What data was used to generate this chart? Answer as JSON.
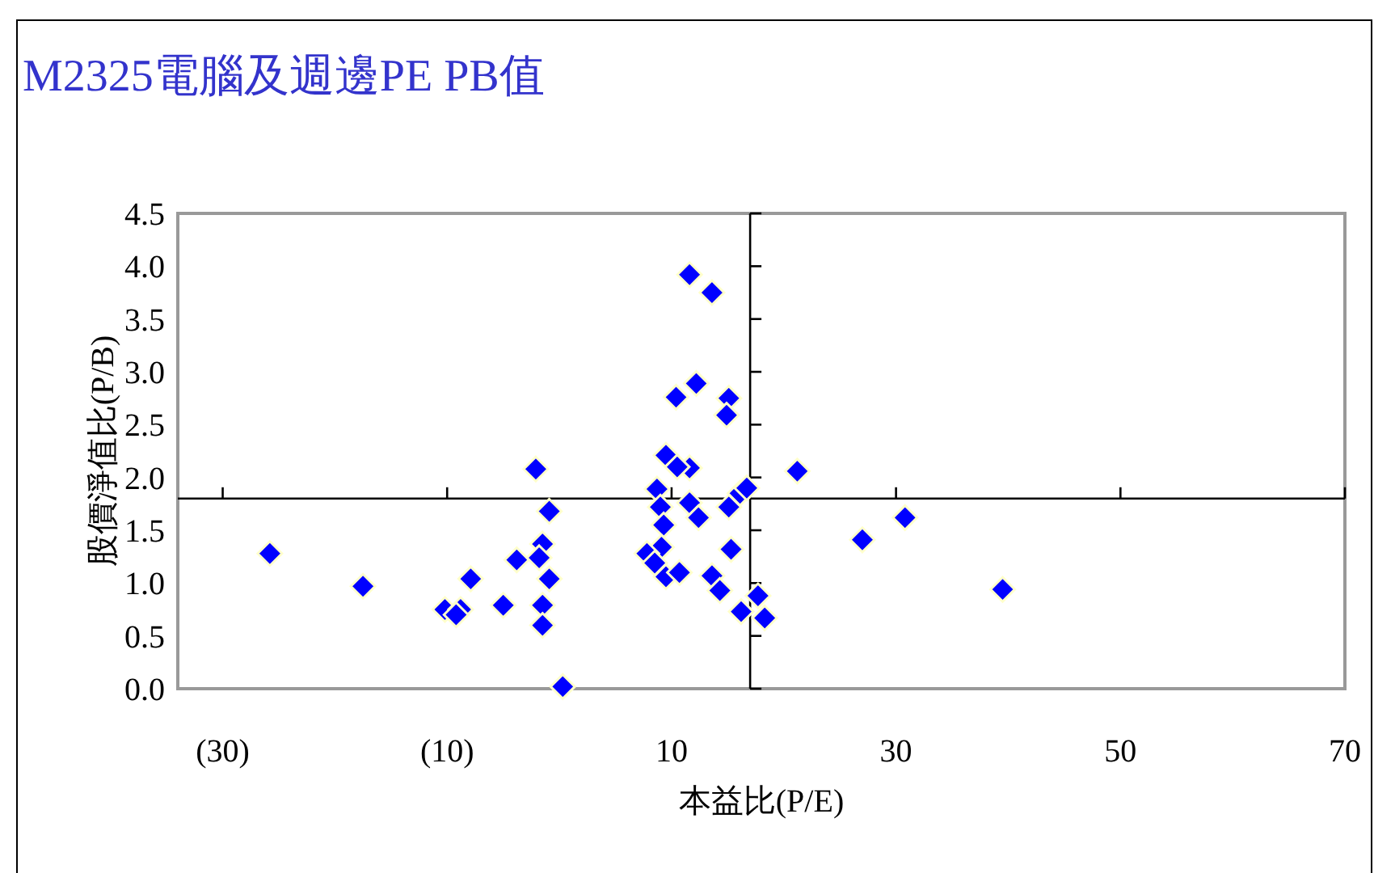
{
  "chart_data": {
    "type": "scatter",
    "title": "M2325電腦及週邊PE PB值",
    "xlabel": "本益比(P/E)",
    "ylabel": "股價淨值比(P/B)",
    "xlim": [
      -34,
      70
    ],
    "ylim": [
      0,
      4.5
    ],
    "xticks": [
      {
        "value": -30,
        "label": "(30)"
      },
      {
        "value": -10,
        "label": "(10)"
      },
      10,
      30,
      50,
      70
    ],
    "yticks": [
      {
        "value": 0,
        "label": "0.0"
      },
      {
        "value": 0.5,
        "label": "0.5"
      },
      {
        "value": 1,
        "label": "1.0"
      },
      {
        "value": 1.5,
        "label": "1.5"
      },
      {
        "value": 2,
        "label": "2.0"
      },
      {
        "value": 2.5,
        "label": "2.5"
      },
      {
        "value": 3,
        "label": "3.0"
      },
      {
        "value": 3.5,
        "label": "3.5"
      },
      {
        "value": 4,
        "label": "4.0"
      },
      {
        "value": 4.5,
        "label": "4.5"
      }
    ],
    "marker": "diamond",
    "grid": false,
    "ref_lines": [
      {
        "axis": "x",
        "value": 17,
        "color": "#000000"
      },
      {
        "axis": "y",
        "value": 1.8,
        "color": "#000000"
      }
    ],
    "series": [
      {
        "color": "#0000ff",
        "x": [
          -25.8,
          -17.5,
          -10.2,
          -8.8,
          -9.2,
          -7.9,
          -5.0,
          -3.8,
          -2.1,
          -0.9,
          -1.5,
          -1.8,
          -0.9,
          -1.5,
          -1.5,
          0.3,
          11.6,
          13.6,
          12.2,
          10.4,
          15.1,
          14.9,
          9.5,
          11.6,
          10.5,
          21.2,
          8.7,
          16.1,
          16.7,
          9.0,
          11.6,
          12.4,
          15.1,
          9.3,
          9.1,
          7.8,
          8.5,
          9.5,
          10.7,
          15.3,
          13.6,
          14.3,
          17.7,
          16.2,
          18.3,
          27.0,
          30.8,
          39.5
        ],
        "values": [
          1.28,
          0.97,
          0.75,
          0.75,
          0.7,
          1.04,
          0.79,
          1.22,
          2.08,
          1.68,
          1.37,
          1.24,
          1.04,
          0.79,
          0.6,
          0.02,
          3.92,
          3.75,
          2.89,
          2.76,
          2.75,
          2.59,
          2.21,
          2.09,
          2.1,
          2.06,
          1.89,
          1.85,
          1.9,
          1.72,
          1.76,
          1.62,
          1.72,
          1.55,
          1.34,
          1.28,
          1.19,
          1.06,
          1.1,
          1.32,
          1.07,
          0.93,
          0.88,
          0.73,
          0.67,
          1.41,
          1.62,
          0.94
        ]
      }
    ]
  }
}
